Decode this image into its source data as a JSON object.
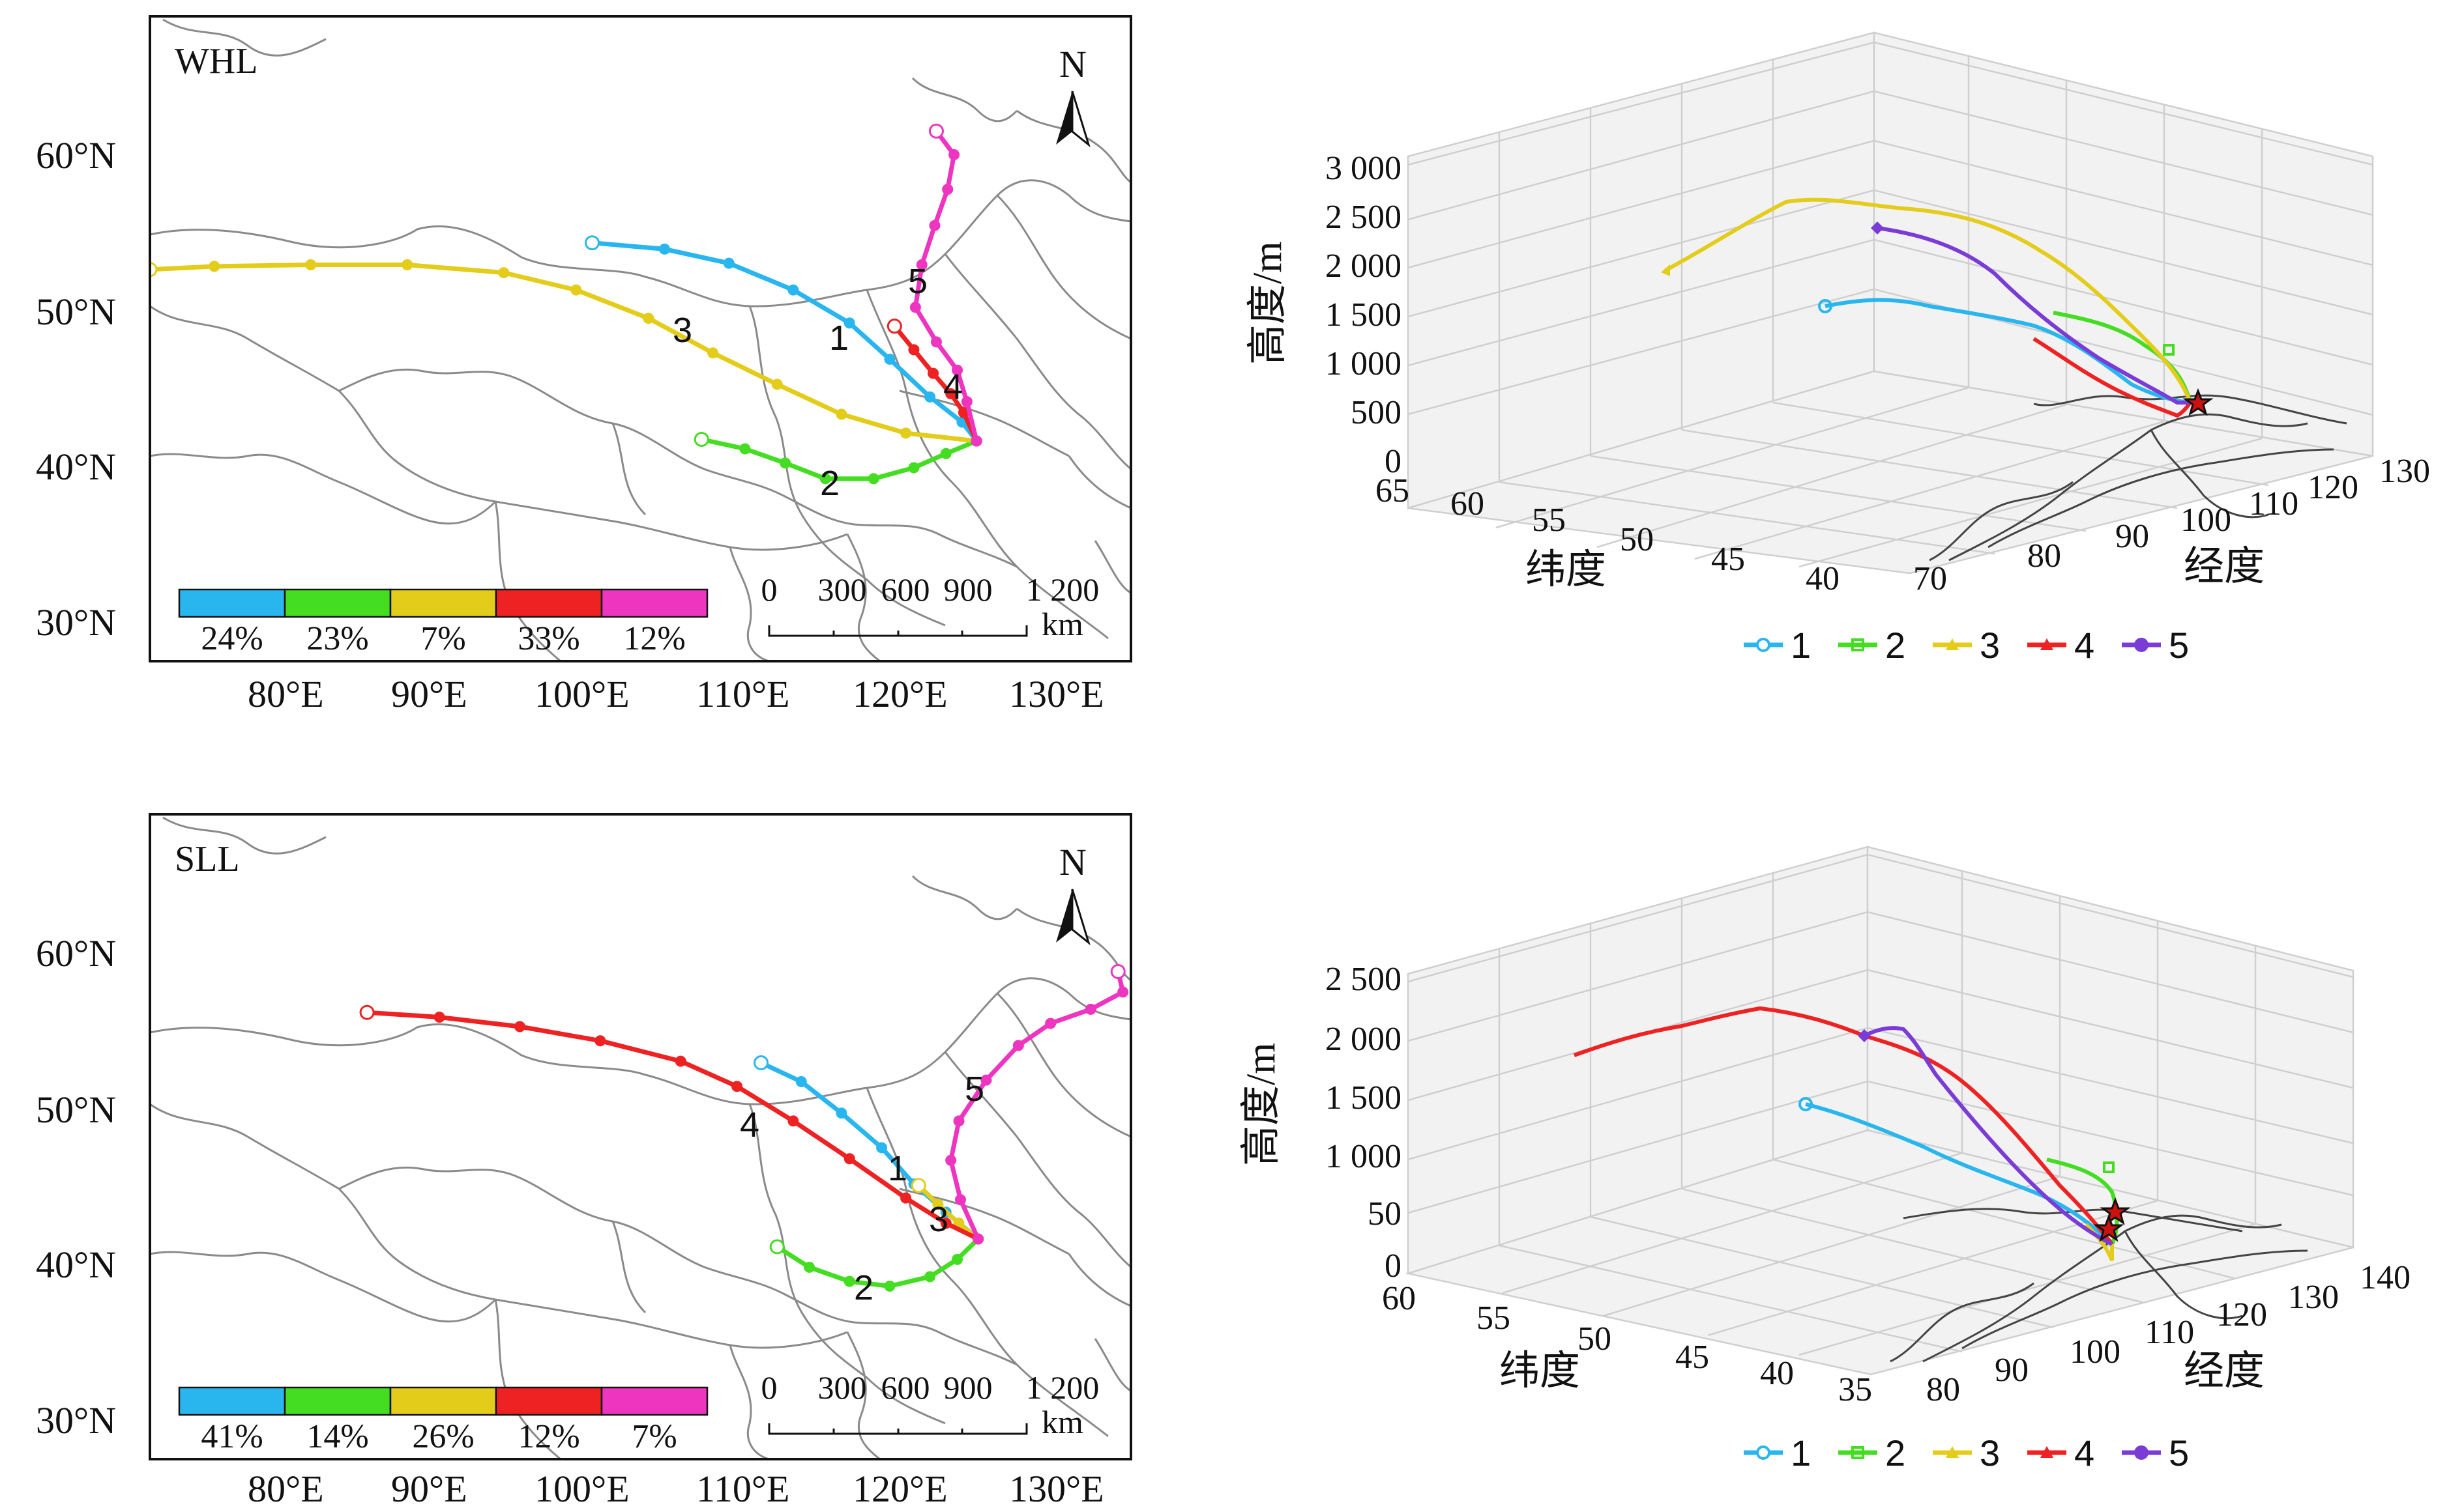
{
  "panels": {
    "whl_map": {
      "name": "WHL",
      "lat_labels": [
        "60°N",
        "50°N",
        "40°N",
        "30°N"
      ],
      "lon_labels": [
        "80°E",
        "90°E",
        "100°E",
        "110°E",
        "120°E",
        "130°E"
      ],
      "north": "N",
      "scale_labels": [
        "0",
        "300",
        "600",
        "900",
        "1 200"
      ],
      "scale_unit": "km",
      "percentages": [
        "24%",
        "23%",
        "7%",
        "33%",
        "12%"
      ],
      "colors": [
        "#29b6ef",
        "#44dd22",
        "#e3cc1a",
        "#ee2222",
        "#ee35c0"
      ],
      "numbers": [
        "1",
        "2",
        "3",
        "4",
        "5"
      ]
    },
    "sll_map": {
      "name": "SLL",
      "lat_labels": [
        "60°N",
        "50°N",
        "40°N",
        "30°N"
      ],
      "lon_labels": [
        "80°E",
        "90°E",
        "100°E",
        "110°E",
        "120°E",
        "130°E"
      ],
      "north": "N",
      "scale_labels": [
        "0",
        "300",
        "600",
        "900",
        "1 200"
      ],
      "scale_unit": "km",
      "percentages": [
        "41%",
        "14%",
        "26%",
        "12%",
        "7%"
      ],
      "colors": [
        "#29b6ef",
        "#44dd22",
        "#e3cc1a",
        "#ee2222",
        "#ee35c0"
      ],
      "numbers": [
        "1",
        "2",
        "3",
        "4",
        "5"
      ]
    },
    "whl_3d": {
      "z_label": "高度/m",
      "z_ticks": [
        "3 000",
        "2 500",
        "2 000",
        "1 500",
        "1 000",
        "500",
        "0"
      ],
      "lat_label": "纬度",
      "lat_ticks": [
        "65",
        "60",
        "55",
        "50",
        "45",
        "40"
      ],
      "lon_label": "经度",
      "lon_ticks": [
        "70",
        "80",
        "90",
        "100",
        "110",
        "120",
        "130"
      ],
      "legend": [
        "1",
        "2",
        "3",
        "4",
        "5"
      ]
    },
    "sll_3d": {
      "z_label": "高度/m",
      "z_ticks": [
        "2 500",
        "2 000",
        "1 500",
        "1 000",
        "50",
        "0"
      ],
      "lat_label": "纬度",
      "lat_ticks": [
        "60",
        "55",
        "50",
        "45",
        "40",
        "35"
      ],
      "lon_label": "经度",
      "lon_ticks": [
        "80",
        "90",
        "100",
        "110",
        "120",
        "130",
        "140"
      ],
      "legend": [
        "1",
        "2",
        "3",
        "4",
        "5"
      ]
    }
  },
  "chart_data": [
    {
      "type": "line",
      "panel": "WHL",
      "xlabel": "",
      "ylabel": "",
      "xlim": [
        72,
        133
      ],
      "ylim": [
        28,
        69
      ],
      "series": [
        {
          "name": "1",
          "share": "24%",
          "color": "#29b6ef",
          "points": [
            [
              99.5,
              54.6
            ],
            [
              104,
              54.2
            ],
            [
              108,
              53.3
            ],
            [
              112,
              51.6
            ],
            [
              115.5,
              49.5
            ],
            [
              118,
              47.2
            ],
            [
              120.5,
              44.8
            ],
            [
              122.5,
              43.2
            ],
            [
              123.4,
              42
            ]
          ]
        },
        {
          "name": "2",
          "share": "23%",
          "color": "#44dd22",
          "points": [
            [
              106.3,
              42.1
            ],
            [
              109,
              41.5
            ],
            [
              111.5,
              40.6
            ],
            [
              114,
              39.6
            ],
            [
              117,
              39.6
            ],
            [
              119.5,
              40.3
            ],
            [
              121.5,
              41.2
            ],
            [
              123.4,
              42
            ]
          ]
        },
        {
          "name": "3",
          "share": "7%",
          "color": "#e3cc1a",
          "points": [
            [
              72,
              52.9
            ],
            [
              76,
              53.1
            ],
            [
              82,
              53.2
            ],
            [
              88,
              53.2
            ],
            [
              94,
              52.7
            ],
            [
              98.5,
              51.6
            ],
            [
              103,
              49.8
            ],
            [
              107,
              47.6
            ],
            [
              111,
              45.6
            ],
            [
              115,
              43.7
            ],
            [
              119,
              42.5
            ],
            [
              123.4,
              42
            ]
          ]
        },
        {
          "name": "4",
          "share": "33%",
          "color": "#ee2222",
          "points": [
            [
              118.3,
              49.3
            ],
            [
              119.5,
              47.8
            ],
            [
              120.7,
              46.3
            ],
            [
              121.8,
              45
            ],
            [
              122.6,
              43.8
            ],
            [
              123.4,
              42
            ]
          ]
        },
        {
          "name": "5",
          "share": "12%",
          "color": "#ee35c0",
          "points": [
            [
              120.9,
              61.7
            ],
            [
              122,
              60.2
            ],
            [
              121.6,
              58
            ],
            [
              120.8,
              55.7
            ],
            [
              120,
              53.2
            ],
            [
              119.6,
              50.5
            ],
            [
              120.9,
              48.3
            ],
            [
              122.2,
              46.5
            ],
            [
              122.8,
              44.5
            ],
            [
              123.4,
              42
            ]
          ]
        }
      ]
    },
    {
      "type": "line",
      "panel": "SLL",
      "xlabel": "",
      "ylabel": "",
      "xlim": [
        72,
        133
      ],
      "ylim": [
        28,
        69
      ],
      "series": [
        {
          "name": "1",
          "share": "41%",
          "color": "#29b6ef",
          "points": [
            [
              110,
              53.2
            ],
            [
              112.5,
              52
            ],
            [
              115,
              50
            ],
            [
              117.5,
              47.8
            ],
            [
              119.5,
              45.5
            ],
            [
              121.5,
              43.7
            ],
            [
              123.5,
              42
            ]
          ]
        },
        {
          "name": "2",
          "share": "14%",
          "color": "#44dd22",
          "points": [
            [
              111,
              41.5
            ],
            [
              113,
              40.2
            ],
            [
              115.5,
              39.3
            ],
            [
              118,
              39
            ],
            [
              120.5,
              39.6
            ],
            [
              122.2,
              40.7
            ],
            [
              123.5,
              42
            ]
          ]
        },
        {
          "name": "3",
          "share": "26%",
          "color": "#e3cc1a",
          "points": [
            [
              119.8,
              45.4
            ],
            [
              121,
              44.2
            ],
            [
              122.3,
              43
            ],
            [
              123.5,
              42
            ]
          ]
        },
        {
          "name": "4",
          "share": "12%",
          "color": "#ee2222",
          "points": [
            [
              85.5,
              56.4
            ],
            [
              90,
              56.1
            ],
            [
              95,
              55.5
            ],
            [
              100,
              54.6
            ],
            [
              105,
              53.3
            ],
            [
              108.5,
              51.7
            ],
            [
              112,
              49.5
            ],
            [
              115.5,
              47.1
            ],
            [
              119,
              44.6
            ],
            [
              121.5,
              43
            ],
            [
              123.5,
              42
            ]
          ]
        },
        {
          "name": "5",
          "share": "7%",
          "color": "#ee35c0",
          "points": [
            [
              132.2,
              59
            ],
            [
              132.5,
              57.7
            ],
            [
              130.5,
              56.6
            ],
            [
              128,
              55.7
            ],
            [
              126,
              54.3
            ],
            [
              124,
              52.1
            ],
            [
              122.3,
              49.5
            ],
            [
              121.8,
              47
            ],
            [
              122.4,
              44.5
            ],
            [
              123.5,
              42
            ]
          ]
        }
      ]
    }
  ]
}
